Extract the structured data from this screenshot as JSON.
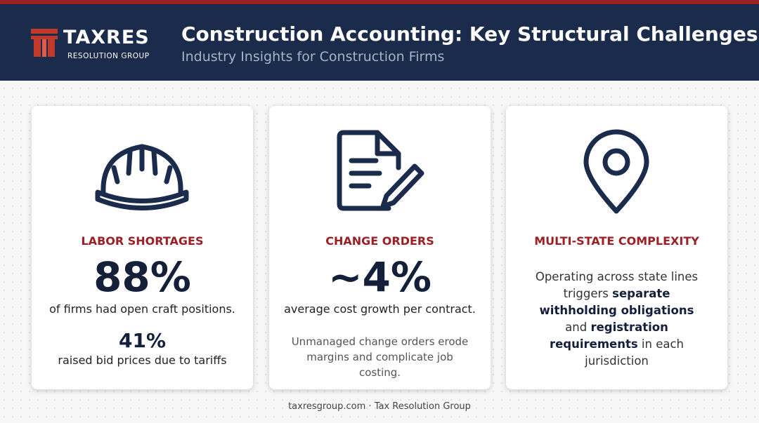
{
  "header": {
    "logo": {
      "name": "TAXRES",
      "tagline": "RESOLUTION GROUP"
    },
    "title": "Construction Accounting: Key Structural Challenges",
    "subtitle": "Industry Insights for Construction Firms"
  },
  "cards": [
    {
      "heading": "LABOR SHORTAGES",
      "stat": "88%",
      "stat_text": "of firms had open craft positions.",
      "second_stat": "41%",
      "second_text": "raised bid prices due to tariffs"
    },
    {
      "heading": "CHANGE ORDERS",
      "stat": "~4%",
      "stat_text": "average cost growth per contract.",
      "note": "Unmanaged change orders erode margins and complicate job costing."
    },
    {
      "heading": "MULTI-STATE COMPLEXITY",
      "body": [
        "Operating across state lines triggers ",
        "separate withholding obligations",
        " and ",
        "registration requirements",
        " in each jurisdiction"
      ]
    }
  ],
  "footer": "taxresgroup.com · Tax Resolution Group"
}
